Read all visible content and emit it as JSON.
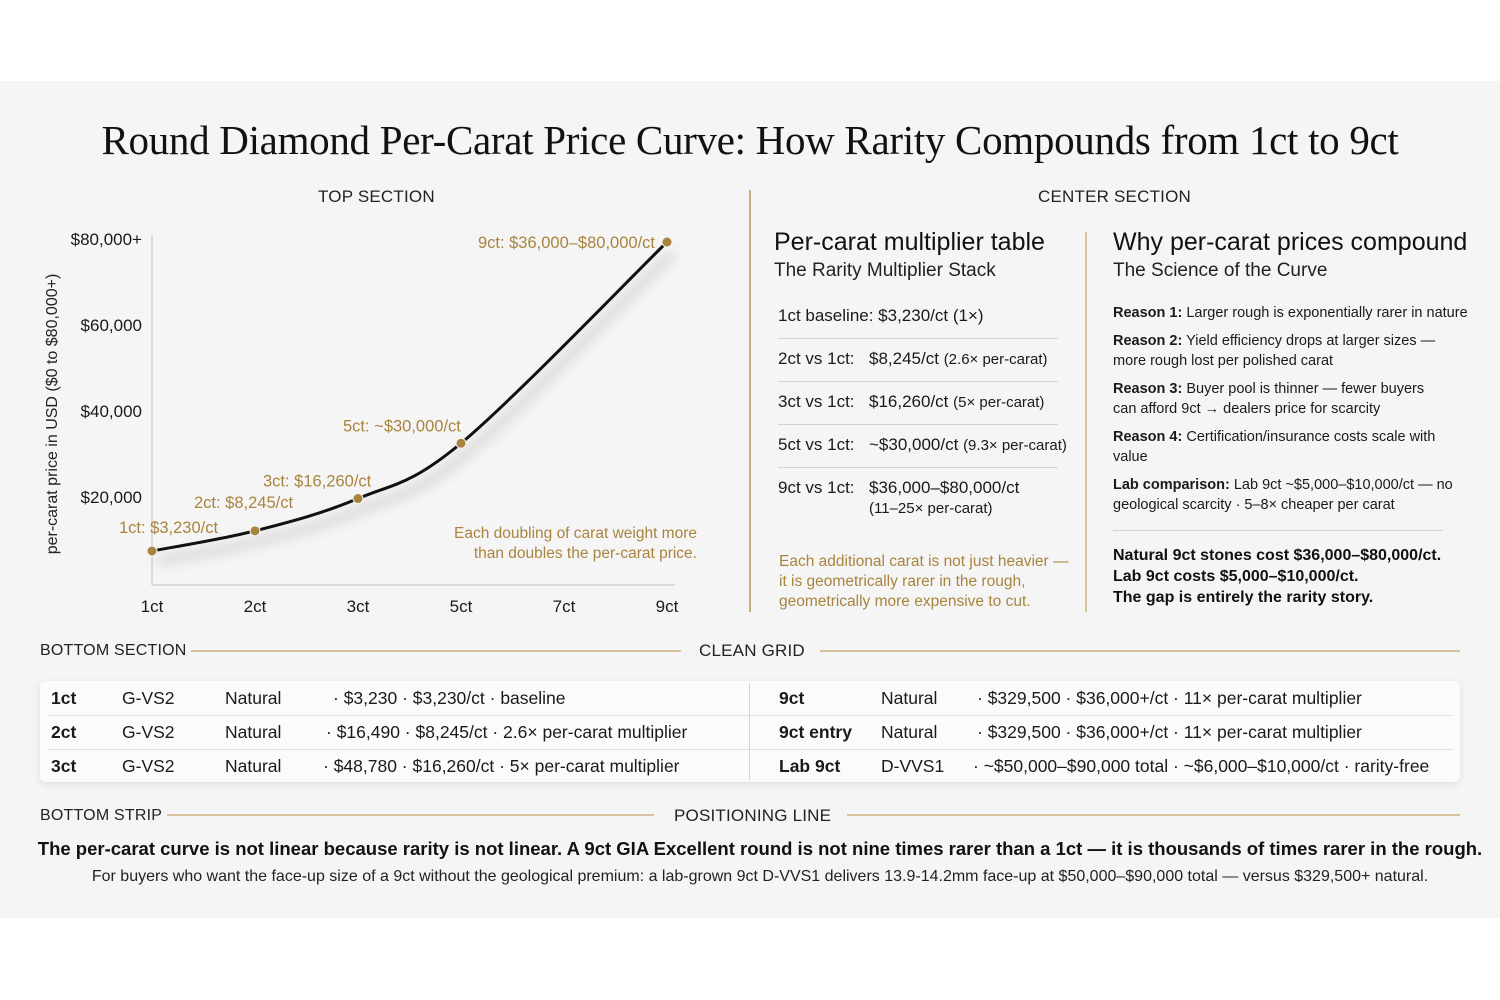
{
  "title": "Round Diamond Per-Carat Price Curve: How Rarity Compounds from 1ct to 9ct",
  "sections": {
    "top": "TOP SECTION",
    "center": "CENTER SECTION",
    "bottom": "BOTTOM SECTION",
    "grid": "CLEAN GRID",
    "strip": "BOTTOM STRIP",
    "positioning": "POSITIONING LINE"
  },
  "chart_data": {
    "type": "line",
    "title": "",
    "xlabel": "",
    "ylabel": "per-carat price in USD ($0 to $80,000+)",
    "x_ticks": [
      "1ct",
      "2ct",
      "3ct",
      "5ct",
      "7ct",
      "9ct"
    ],
    "y_ticks": [
      "$20,000",
      "$40,000",
      "$60,000",
      "$80,000+"
    ],
    "y_tick_values": [
      20000,
      40000,
      60000,
      80000
    ],
    "ylim": [
      0,
      80000
    ],
    "grid": false,
    "series": [
      {
        "x": [
          1,
          2,
          3,
          5,
          9
        ],
        "y": [
          3230,
          8245,
          16260,
          30000,
          80000
        ]
      }
    ],
    "point_labels": [
      "1ct: $3,230/ct",
      "2ct: $8,245/ct",
      "3ct: $16,260/ct",
      "5ct: ~$30,000/ct",
      "9ct: $36,000–$80,000/ct"
    ],
    "annotation": [
      "Each doubling of carat weight more",
      "than doubles the per-carat price."
    ]
  },
  "multiplier": {
    "heading": "Per-carat multiplier table",
    "subheading": "The Rarity Multiplier Stack",
    "baseline": "1ct baseline: $3,230/ct (1×)",
    "rows": [
      {
        "k": "2ct vs 1ct:",
        "v": "$8,245/ct",
        "m": "(2.6× per-carat)"
      },
      {
        "k": "3ct vs 1ct:",
        "v": "$16,260/ct",
        "m": "(5× per-carat)"
      },
      {
        "k": "5ct vs 1ct:",
        "v": "~$30,000/ct",
        "m": "(9.3× per-carat)"
      },
      {
        "k": "9ct vs 1ct:",
        "v": "$36,000–$80,000/ct",
        "m": "(11–25× per-carat)"
      }
    ],
    "note": "Each additional carat is not just heavier — it is geometrically rarer in the rough, geometrically more expensive to cut."
  },
  "why": {
    "heading": "Why per-carat prices compound",
    "subheading": "The Science of the Curve",
    "reasons": [
      {
        "label": "Reason 1:",
        "text": "Larger rough is exponentially rarer in nature"
      },
      {
        "label": "Reason 2:",
        "text": "Yield efficiency drops at larger sizes — more rough lost per polished carat"
      },
      {
        "label": "Reason 3:",
        "text": "Buyer pool is thinner — fewer buyers can afford 9ct → dealers price for scarcity"
      },
      {
        "label": "Reason 4:",
        "text": "Certification/insurance costs scale with value"
      },
      {
        "label": "Lab comparison:",
        "text": "Lab 9ct ~$5,000–$10,000/ct — no geological scarcity · 5–8× cheaper per carat"
      }
    ],
    "closing": [
      "Natural 9ct stones cost $36,000–$80,000/ct.",
      "Lab 9ct costs $5,000–$10,000/ct.",
      "The gap is entirely the rarity story."
    ]
  },
  "grid": {
    "left": [
      {
        "size": "1ct",
        "grade": "G-VS2",
        "origin": "Natural",
        "details": "· $3,230 · $3,230/ct · baseline"
      },
      {
        "size": "2ct",
        "grade": "G-VS2",
        "origin": "Natural",
        "details": "· $16,490 · $8,245/ct · 2.6× per-carat multiplier"
      },
      {
        "size": "3ct",
        "grade": "G-VS2",
        "origin": "Natural",
        "details": "· $48,780 · $16,260/ct · 5× per-carat multiplier"
      }
    ],
    "right": [
      {
        "size": "9ct",
        "grade": "Natural",
        "details": "· $329,500 · $36,000+/ct · 11× per-carat multiplier"
      },
      {
        "size": "9ct entry",
        "grade": "Natural",
        "details": "· $329,500 · $36,000+/ct · 11× per-carat multiplier"
      },
      {
        "size": "Lab 9ct",
        "grade": "D-VVS1",
        "details": "· ~$50,000–$90,000 total · ~$6,000–$10,000/ct · rarity-free"
      }
    ]
  },
  "strip": {
    "main": "The per-carat curve is not linear because rarity is not linear. A 9ct GIA Excellent round is not nine times rarer than a 1ct — it is thousands of times rarer in the rough.",
    "sub": "For buyers who want the face-up size of a 9ct without the geological premium: a lab-grown 9ct D-VVS1 delivers 13.9-14.2mm face-up at $50,000–$90,000 total — versus $329,500+ natural."
  },
  "colors": {
    "gold": "#a8843e",
    "line": "#111111",
    "panel": "#f6f5f5",
    "divider": "#c9ad7f"
  }
}
